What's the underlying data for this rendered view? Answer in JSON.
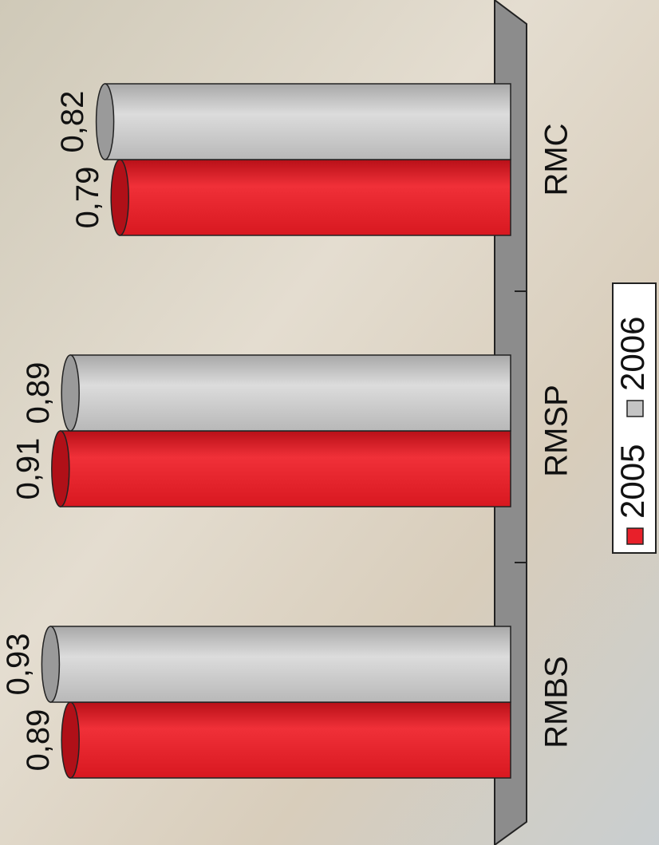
{
  "chart_data": {
    "type": "bar",
    "orientation": "vertical-rotated",
    "categories": [
      "RMBS",
      "RMSP",
      "RMC"
    ],
    "series": [
      {
        "name": "2005",
        "color": "#e8202a",
        "values": [
          0.89,
          0.91,
          0.79
        ],
        "value_labels": [
          "0,89",
          "0,91",
          "0,79"
        ]
      },
      {
        "name": "2006",
        "color": "#c4c4c4",
        "values": [
          0.93,
          0.89,
          0.82
        ],
        "value_labels": [
          "0,93",
          "0,89",
          "0,82"
        ]
      }
    ],
    "ylim": [
      0,
      1
    ],
    "legend": "bottom"
  }
}
